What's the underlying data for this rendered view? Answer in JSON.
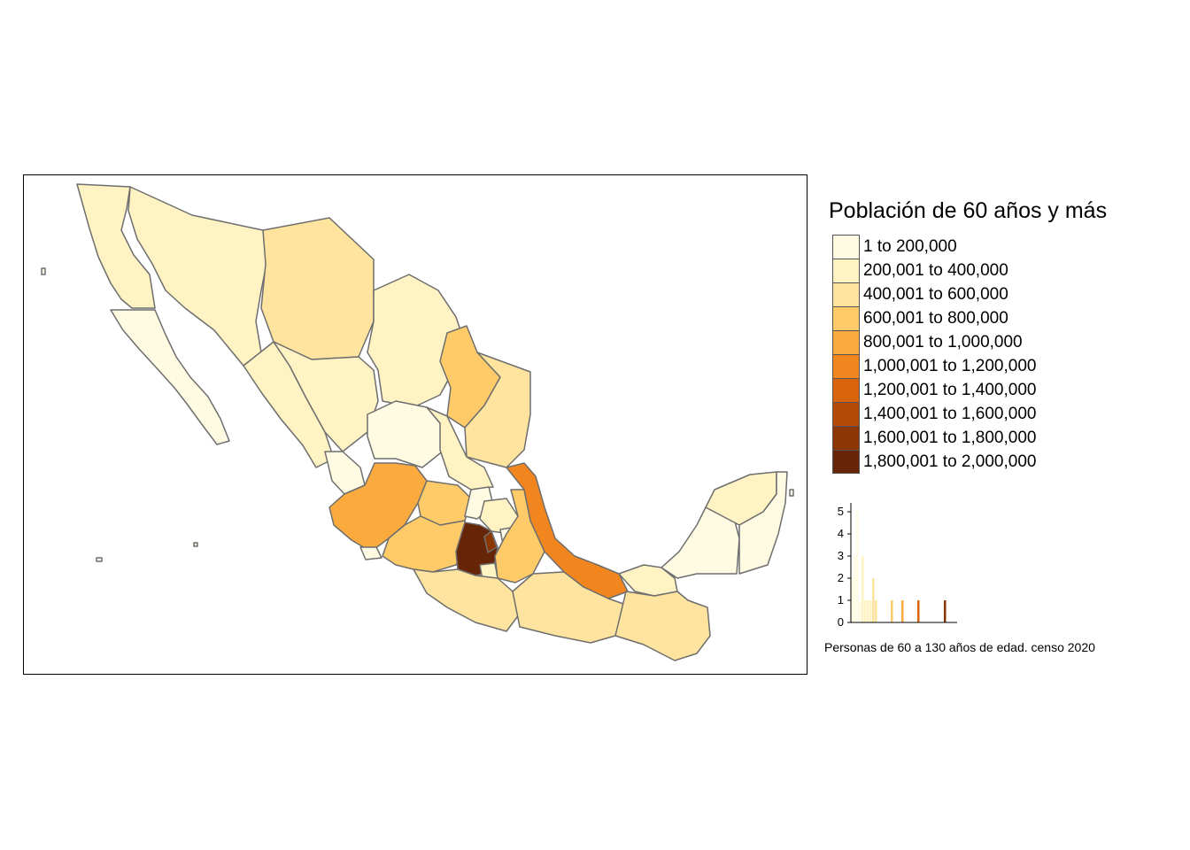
{
  "legend": {
    "title": "Población de 60 años y más",
    "classes": [
      {
        "label": "1 to 200,000",
        "color": "#FFFBE3"
      },
      {
        "label": "200,001 to 400,000",
        "color": "#FFF3C4"
      },
      {
        "label": "400,001 to 600,000",
        "color": "#FEE49E"
      },
      {
        "label": "600,001 to 800,000",
        "color": "#FECB68"
      },
      {
        "label": "800,001 to 1,000,000",
        "color": "#FBAA3E"
      },
      {
        "label": "1,000,001 to 1,200,000",
        "color": "#F1861F"
      },
      {
        "label": "1,200,001 to 1,400,000",
        "color": "#DA640D"
      },
      {
        "label": "1,400,001 to 1,600,000",
        "color": "#B44A05"
      },
      {
        "label": "1,600,001 to 1,800,000",
        "color": "#8C3604"
      },
      {
        "label": "1,800,001 to 2,000,000",
        "color": "#662506"
      }
    ]
  },
  "caption": "Personas de 60 a 130 años de edad. censo 2020",
  "chart_data": {
    "type": "bar",
    "yticks": [
      0,
      1,
      2,
      3,
      4,
      5
    ],
    "ylim": [
      0,
      5.4
    ],
    "xlim": [
      0,
      2000000
    ],
    "bin_width": 50000,
    "bins": [
      {
        "x": 25000,
        "count": 2
      },
      {
        "x": 75000,
        "count": 3
      },
      {
        "x": 125000,
        "count": 5
      },
      {
        "x": 175000,
        "count": 1
      },
      {
        "x": 225000,
        "count": 3
      },
      {
        "x": 275000,
        "count": 1
      },
      {
        "x": 325000,
        "count": 1
      },
      {
        "x": 375000,
        "count": 1
      },
      {
        "x": 425000,
        "count": 2
      },
      {
        "x": 475000,
        "count": 1
      },
      {
        "x": 775000,
        "count": 1
      },
      {
        "x": 975000,
        "count": 1
      },
      {
        "x": 1275000,
        "count": 1
      },
      {
        "x": 1775000,
        "count": 1
      }
    ],
    "title": "",
    "xlabel": "",
    "ylabel": ""
  }
}
